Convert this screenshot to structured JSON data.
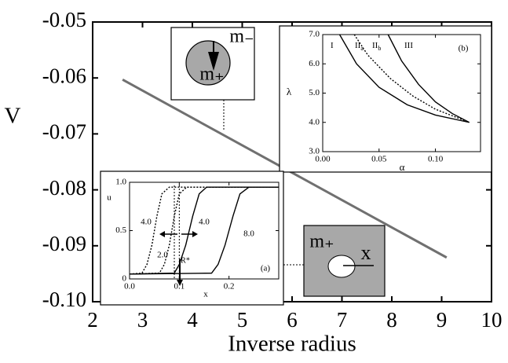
{
  "chart_data": [
    {
      "type": "line",
      "x_label": "Inverse radius",
      "y_label": "V",
      "x": [
        2.6,
        9.1
      ],
      "values": [
        -0.0603,
        -0.0921
      ],
      "color": "#707070",
      "xlim": [
        2,
        10
      ],
      "xticks": [
        2,
        3,
        4,
        5,
        6,
        7,
        8,
        9,
        10
      ],
      "ylim": [
        -0.1,
        -0.05
      ],
      "yticks": [
        -0.05,
        -0.06,
        -0.07,
        -0.08,
        -0.09,
        {
          "value": -0.1,
          "label": "-0.10"
        }
      ],
      "annotations": [
        "m₋",
        "m₊",
        "m₊",
        "x"
      ]
    },
    {
      "type": "line",
      "label": "(b)",
      "x_label": "α",
      "y_label": "λ",
      "xlim": [
        0,
        0.14
      ],
      "xticks": [
        {
          "value": 0,
          "label": "0.00"
        },
        0.05,
        {
          "value": 0.1,
          "label": "0.10"
        }
      ],
      "ylim": [
        3,
        7
      ],
      "yticks": [
        {
          "value": 3,
          "label": "3.0"
        },
        {
          "value": 4,
          "label": "4.0"
        },
        {
          "value": 5,
          "label": "5.0"
        },
        {
          "value": 6,
          "label": "6.0"
        },
        {
          "value": 7,
          "label": "7.0"
        }
      ],
      "series": [
        {
          "color": "#000000",
          "dash": false,
          "x": [
            0.015,
            0.03,
            0.05,
            0.075,
            0.1,
            0.13
          ],
          "values": [
            7.0,
            6.0,
            5.2,
            4.6,
            4.25,
            4.0
          ]
        },
        {
          "color": "#000000",
          "dash": true,
          "x": [
            0.028,
            0.04,
            0.06,
            0.08,
            0.1,
            0.13
          ],
          "values": [
            7.0,
            6.3,
            5.5,
            4.9,
            4.45,
            4.0
          ]
        },
        {
          "color": "#000000",
          "dash": false,
          "x": [
            0.058,
            0.07,
            0.085,
            0.1,
            0.115,
            0.13
          ],
          "values": [
            7.0,
            6.1,
            5.3,
            4.7,
            4.3,
            4.0
          ]
        }
      ],
      "region_labels": [
        {
          "label": "I"
        },
        {
          "label": "II",
          "sub": "a"
        },
        {
          "label": "II",
          "sub": "b"
        },
        {
          "label": "III"
        }
      ]
    },
    {
      "type": "line",
      "label": "(a)",
      "x_label": "x",
      "y_label": "u",
      "xlim": [
        0,
        0.3
      ],
      "xticks": [
        {
          "value": 0,
          "label": "0.0"
        },
        0.1,
        0.2
      ],
      "ylim": [
        0,
        1
      ],
      "yticks": [
        0,
        0.5,
        {
          "value": 1,
          "label": "1.0"
        }
      ],
      "series": [
        {
          "color": "#000000",
          "dash": true,
          "x": [
            0,
            0.025,
            0.035,
            0.045,
            0.05,
            0.055,
            0.065,
            0.08,
            0.3
          ],
          "values": [
            0.05,
            0.06,
            0.15,
            0.35,
            0.5,
            0.65,
            0.88,
            0.95,
            0.95
          ]
        },
        {
          "color": "#000000",
          "dash": true,
          "x": [
            0,
            0.06,
            0.07,
            0.08,
            0.085,
            0.09,
            0.1,
            0.115,
            0.3
          ],
          "values": [
            0.05,
            0.06,
            0.15,
            0.35,
            0.5,
            0.65,
            0.88,
            0.95,
            0.95
          ]
        },
        {
          "color": "#000000",
          "dash": false,
          "x": [
            0,
            0.09,
            0.1,
            0.113,
            0.12,
            0.127,
            0.14,
            0.155,
            0.3
          ],
          "values": [
            0.05,
            0.06,
            0.15,
            0.35,
            0.5,
            0.65,
            0.88,
            0.95,
            0.95
          ]
        },
        {
          "color": "#000000",
          "dash": false,
          "x": [
            0,
            0.165,
            0.178,
            0.192,
            0.2,
            0.208,
            0.222,
            0.24,
            0.3
          ],
          "values": [
            0.05,
            0.06,
            0.15,
            0.35,
            0.5,
            0.65,
            0.88,
            0.95,
            0.95
          ]
        }
      ],
      "curve_labels": [
        "4.0",
        "2.0",
        "4.0",
        "8.0"
      ],
      "marker_label": "R*"
    }
  ]
}
